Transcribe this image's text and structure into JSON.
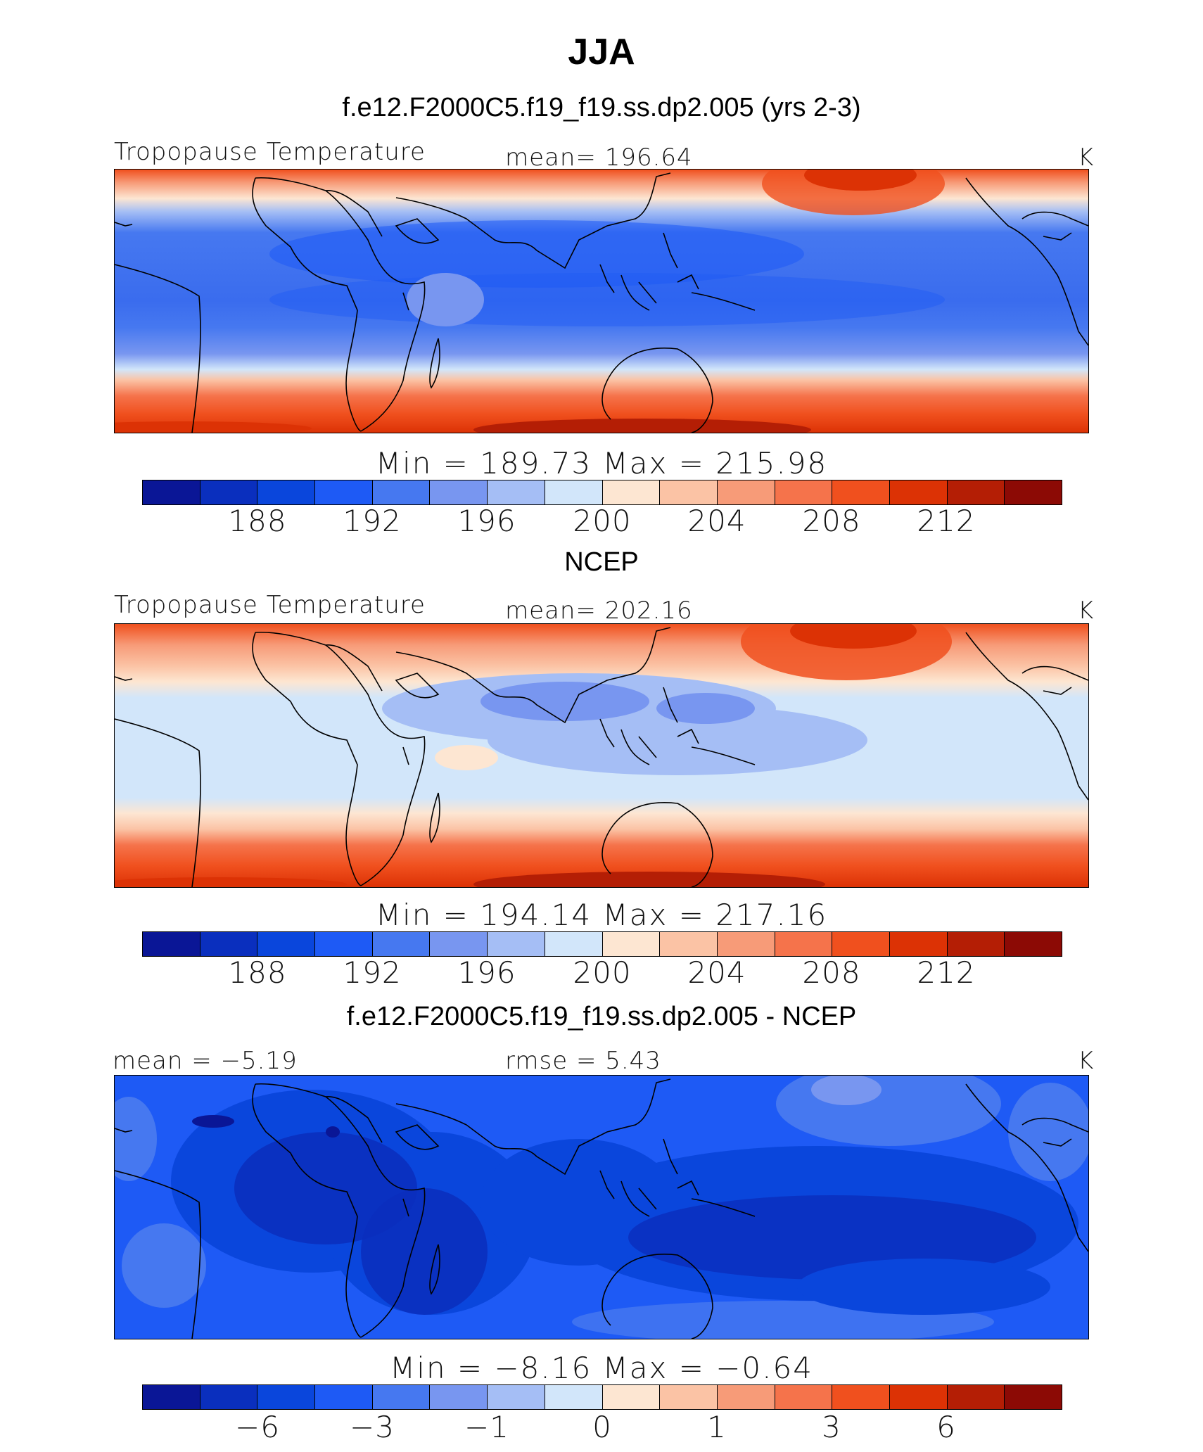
{
  "title": "JJA",
  "colorbar_colors": [
    "#0a1696",
    "#0a2fbe",
    "#0a46dc",
    "#1e5af5",
    "#4678f0",
    "#7896f0",
    "#a5bef5",
    "#d2e6fa",
    "#fde6d2",
    "#fbc3a5",
    "#f79b78",
    "#f5734b",
    "#f0501e",
    "#dc3205",
    "#b41e05",
    "#8c0a05"
  ],
  "panels": [
    {
      "title": "f.e12.F2000C5.f19_f19.ss.dp2.005 (yrs 2-3)",
      "left_label": "Tropopause  Temperature",
      "center_label": "mean=  196.64",
      "units": "K",
      "minmax": "Min  =  189.73  Max  =  215.98",
      "tick_labels": [
        "188",
        "192",
        "196",
        "200",
        "204",
        "208",
        "212"
      ]
    },
    {
      "title": "NCEP",
      "left_label": "Tropopause  Temperature",
      "center_label": "mean=  202.16",
      "units": "K",
      "minmax": "Min  =  194.14  Max  =  217.16",
      "tick_labels": [
        "188",
        "192",
        "196",
        "200",
        "204",
        "208",
        "212"
      ]
    },
    {
      "title": "f.e12.F2000C5.f19_f19.ss.dp2.005 - NCEP",
      "left_label": "mean  =    −5.19",
      "center_label": "rmse  =      5.43",
      "units": "K",
      "minmax": "Min  =    −8.16  Max  =    −0.64",
      "tick_labels": [
        "−6",
        "−3",
        "−1",
        "0",
        "1",
        "3",
        "6"
      ]
    }
  ]
}
